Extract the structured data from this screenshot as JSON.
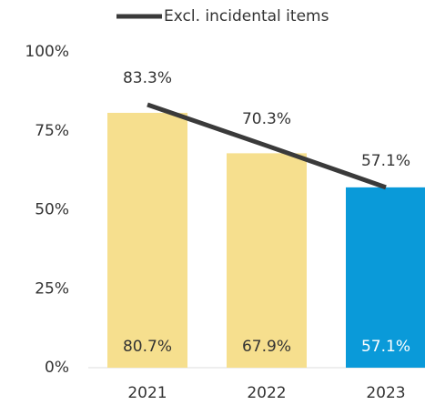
{
  "chart_data": {
    "type": "bar",
    "categories": [
      "2021",
      "2022",
      "2023"
    ],
    "values": [
      80.7,
      67.9,
      57.1
    ],
    "value_labels": [
      "80.7%",
      "67.9%",
      "57.1%"
    ],
    "colors": [
      "#f6df8e",
      "#f6df8e",
      "#0a9ad9"
    ],
    "series": [
      {
        "name": "Excl. incidental items",
        "type": "line",
        "color": "#3a3a3a",
        "values": [
          83.3,
          70.3,
          57.1
        ],
        "value_labels": [
          "83.3%",
          "70.3%",
          "57.1%"
        ]
      }
    ],
    "ylim": [
      0,
      100
    ],
    "yticks": [
      {
        "value": 0,
        "label": "0%"
      },
      {
        "value": 25,
        "label": "25%"
      },
      {
        "value": 50,
        "label": "50%"
      },
      {
        "value": 75,
        "label": "75%"
      },
      {
        "value": 100,
        "label": "100%"
      }
    ],
    "legend": "top"
  }
}
